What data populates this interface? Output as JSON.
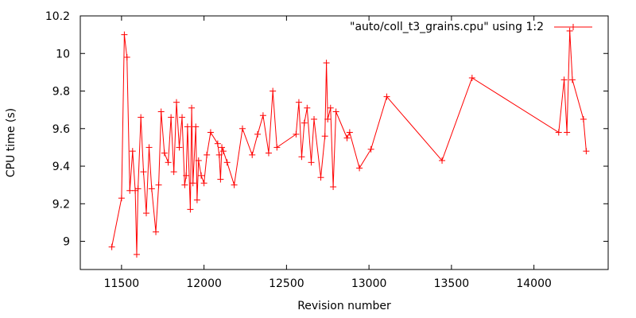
{
  "chart_data": {
    "type": "line",
    "title": "",
    "xlabel": "Revision number",
    "ylabel": "CPU time (s)",
    "xlim": [
      11250,
      14450
    ],
    "ylim": [
      8.85,
      10.2
    ],
    "xticks": [
      11500,
      12000,
      12500,
      13000,
      13500,
      14000
    ],
    "yticks": [
      9,
      9.2,
      9.4,
      9.6,
      9.8,
      10,
      10.2
    ],
    "grid": false,
    "legend_position": "top-right",
    "series_color": "#ff0000",
    "series": [
      {
        "name": "\"auto/coll_t3_grains.cpu\" using 1:2",
        "x": [
          11441,
          11500,
          11517,
          11533,
          11550,
          11567,
          11583,
          11592,
          11600,
          11617,
          11633,
          11650,
          11667,
          11683,
          11708,
          11725,
          11740,
          11760,
          11783,
          11800,
          11817,
          11833,
          11850,
          11867,
          11883,
          11892,
          11900,
          11917,
          11925,
          11933,
          11950,
          11958,
          11967,
          11983,
          12000,
          12017,
          12040,
          12083,
          12092,
          12100,
          12108,
          12117,
          12140,
          12183,
          12233,
          12292,
          12325,
          12358,
          12392,
          12417,
          12442,
          12558,
          12575,
          12592,
          12608,
          12625,
          12650,
          12667,
          12708,
          12733,
          12742,
          12750,
          12767,
          12783,
          12800,
          12867,
          12883,
          12942,
          13012,
          13108,
          13443,
          13625,
          14150,
          14183,
          14200,
          14217,
          14233,
          14300,
          14317
        ],
        "values": [
          8.97,
          9.23,
          10.1,
          9.98,
          9.27,
          9.48,
          9.27,
          8.93,
          9.28,
          9.66,
          9.37,
          9.15,
          9.5,
          9.28,
          9.05,
          9.3,
          9.69,
          9.47,
          9.42,
          9.66,
          9.37,
          9.74,
          9.5,
          9.66,
          9.3,
          9.35,
          9.61,
          9.17,
          9.71,
          9.31,
          9.61,
          9.22,
          9.43,
          9.35,
          9.31,
          9.46,
          9.58,
          9.52,
          9.46,
          9.33,
          9.5,
          9.48,
          9.42,
          9.3,
          9.6,
          9.46,
          9.57,
          9.67,
          9.47,
          9.8,
          9.5,
          9.57,
          9.74,
          9.45,
          9.63,
          9.71,
          9.42,
          9.65,
          9.34,
          9.56,
          9.95,
          9.65,
          9.71,
          9.29,
          9.69,
          9.55,
          9.58,
          9.39,
          9.49,
          9.77,
          9.43,
          9.87,
          9.58,
          9.86,
          9.58,
          10.12,
          9.86,
          9.65,
          9.48
        ]
      }
    ]
  }
}
